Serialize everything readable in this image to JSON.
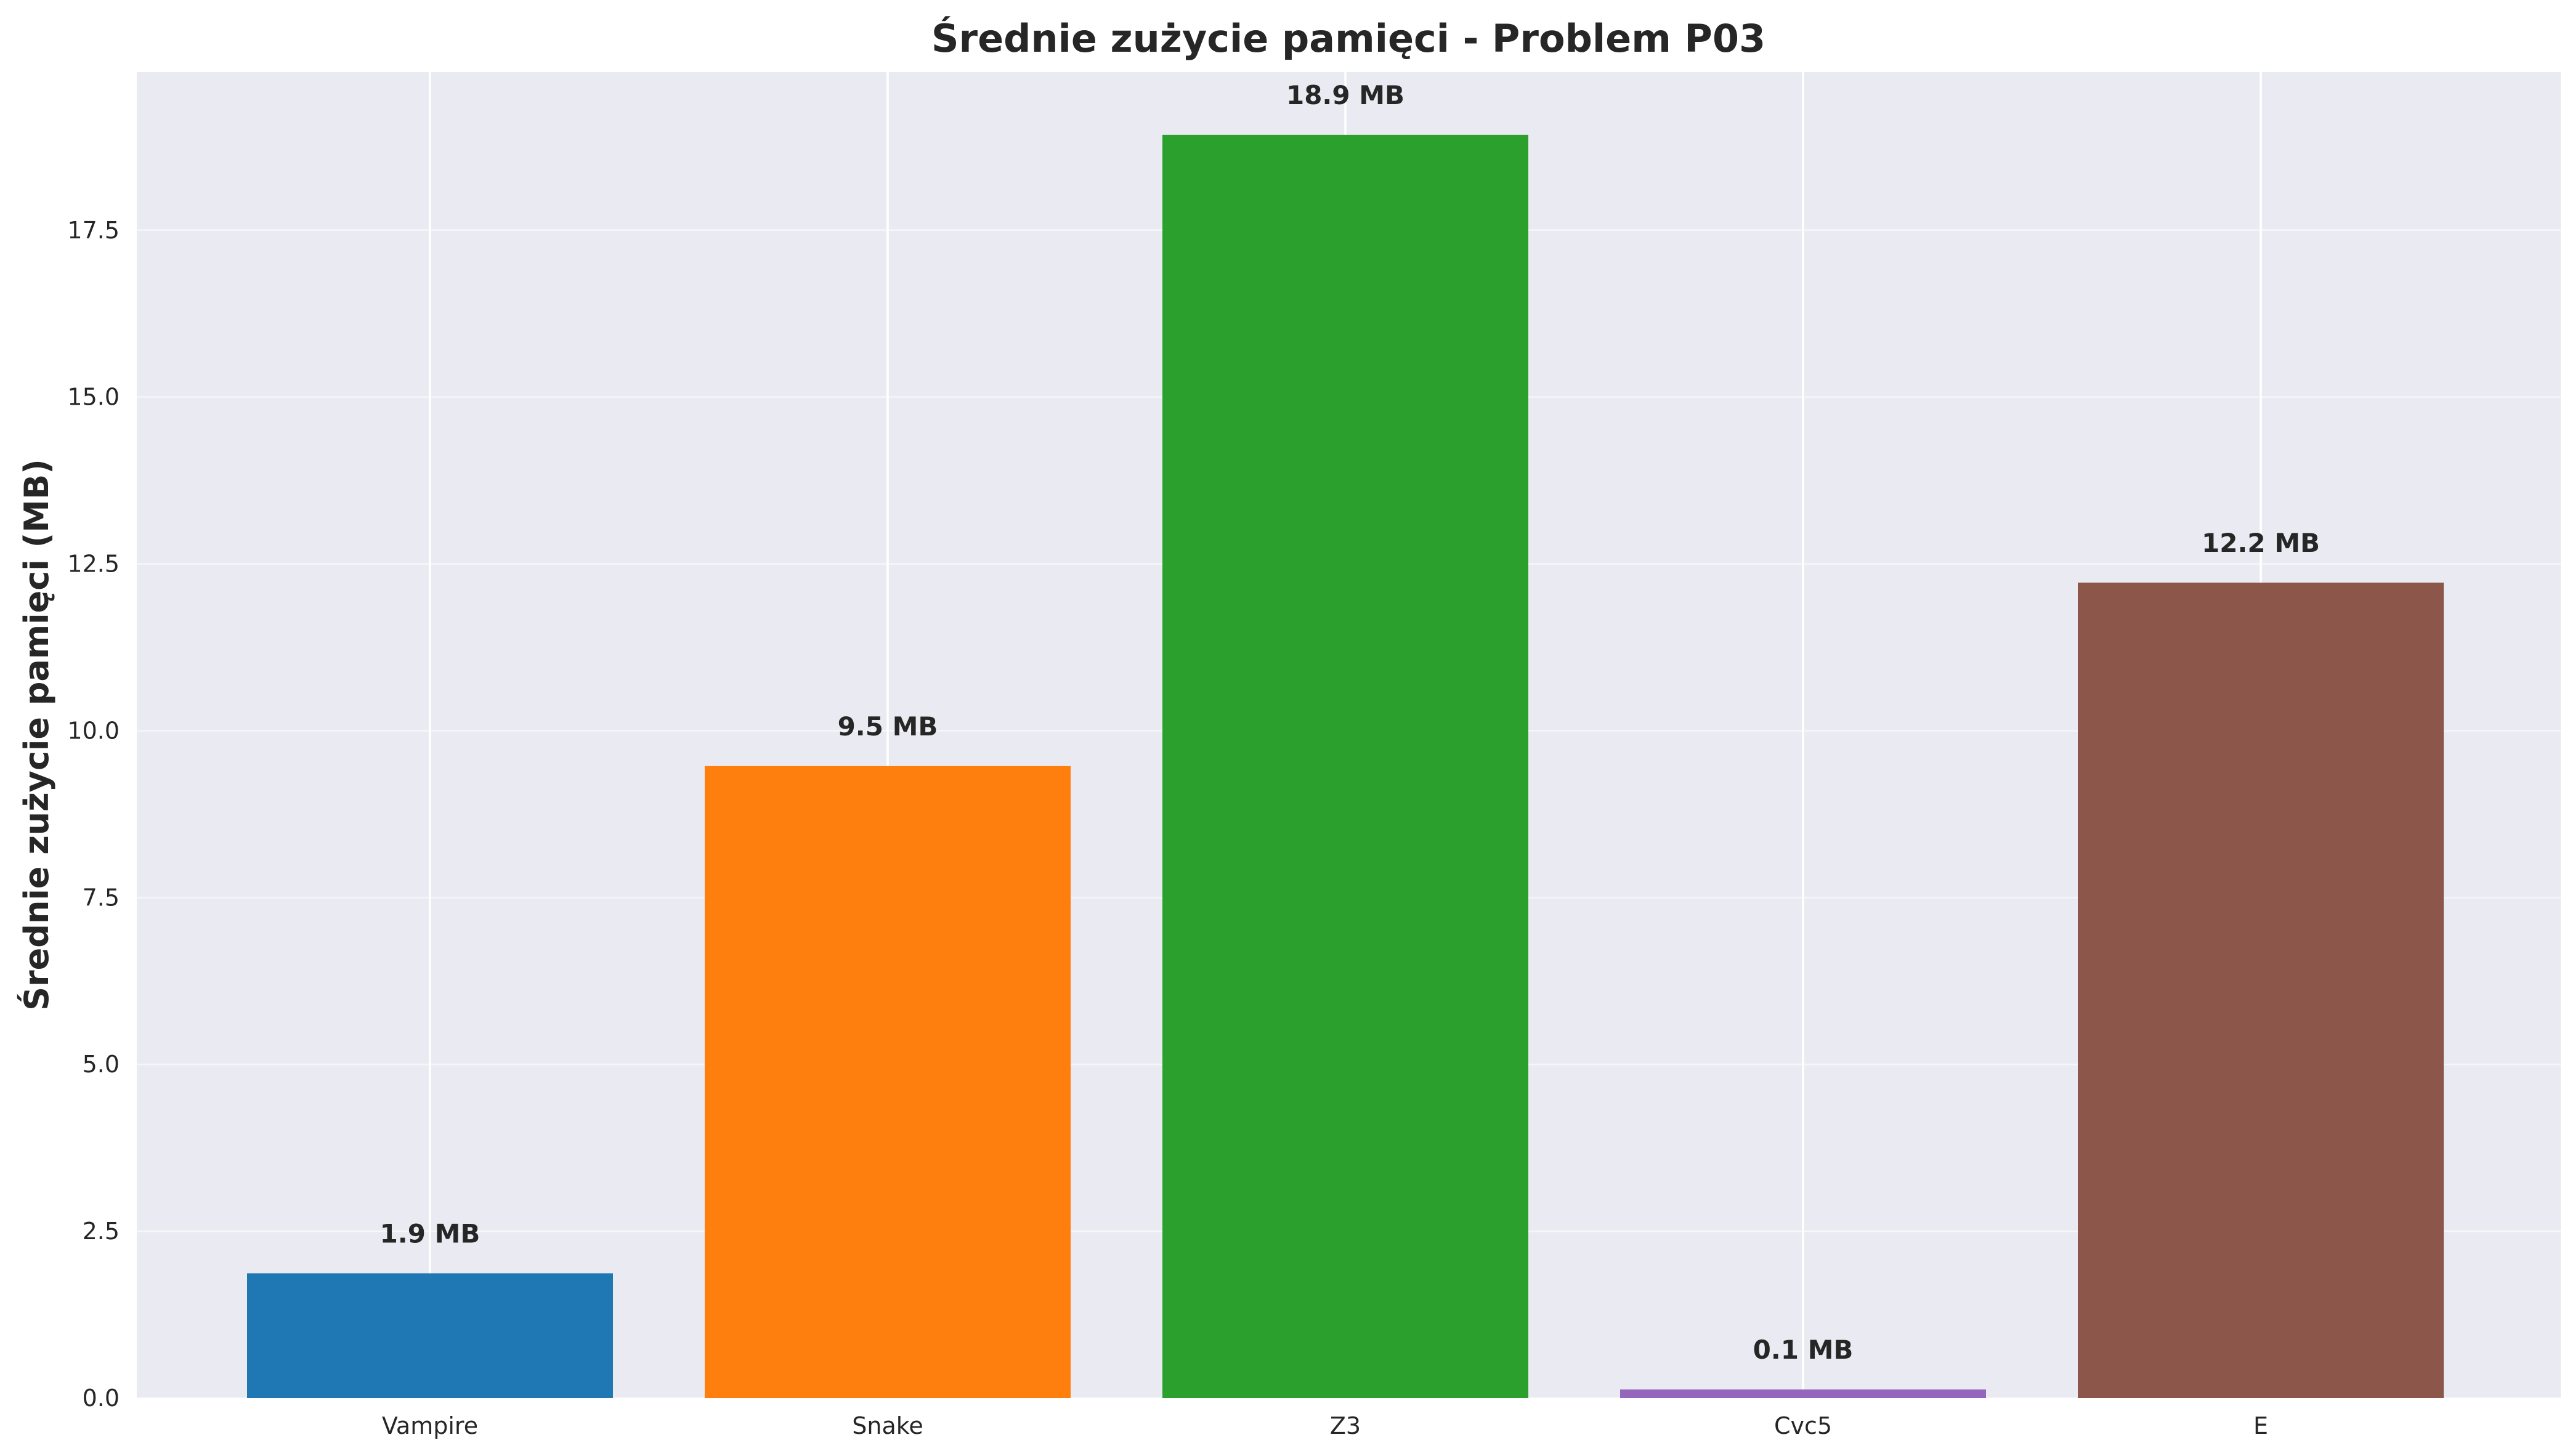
{
  "chart_data": {
    "type": "bar",
    "title": "Średnie zużycie pamięci - Problem P03",
    "xlabel": "",
    "ylabel": "Średnie zużycie pamięci (MB)",
    "categories": [
      "Vampire",
      "Snake",
      "Z3",
      "Cvc5",
      "E"
    ],
    "values": [
      1.87,
      9.47,
      18.93,
      0.13,
      12.22
    ],
    "data_labels": [
      "1.9 MB",
      "9.5 MB",
      "18.9 MB",
      "0.1 MB",
      "12.2 MB"
    ],
    "colors": [
      "#1f77b4",
      "#ff7f0e",
      "#2ca02c",
      "#9467bd",
      "#8c564b"
    ],
    "ylim": [
      0,
      19.87
    ],
    "yticks": [
      0.0,
      2.5,
      5.0,
      7.5,
      10.0,
      12.5,
      15.0,
      17.5
    ],
    "ytick_labels": [
      "0.0",
      "2.5",
      "5.0",
      "7.5",
      "10.0",
      "12.5",
      "15.0",
      "17.5"
    ],
    "grid": true,
    "legend": "none",
    "background": "#eaeaf2"
  }
}
